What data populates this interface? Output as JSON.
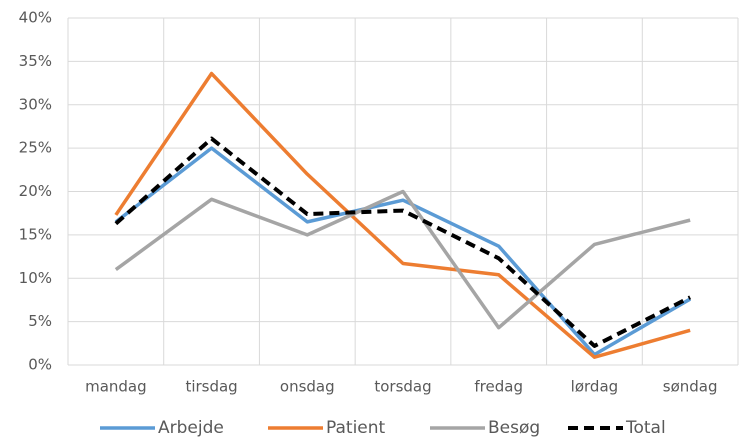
{
  "chart_data": {
    "type": "line",
    "categories": [
      "mandag",
      "tirsdag",
      "onsdag",
      "torsdag",
      "fredag",
      "lørdag",
      "søndag"
    ],
    "series": [
      {
        "name": "Arbejde",
        "color": "#5b9bd5",
        "values": [
          16.5,
          25,
          16.5,
          19,
          13.7,
          1.2,
          7.6
        ]
      },
      {
        "name": "Patient",
        "color": "#ed7d31",
        "values": [
          17.3,
          33.6,
          22,
          11.7,
          10.4,
          0.9,
          4
        ]
      },
      {
        "name": "Besøg",
        "color": "#a5a5a5",
        "values": [
          11,
          19.1,
          15,
          20,
          4.3,
          13.9,
          16.7
        ]
      },
      {
        "name": "Total",
        "color": "#000000",
        "dashed": true,
        "values": [
          16.3,
          26.1,
          17.4,
          17.8,
          12.3,
          2.2,
          7.8
        ]
      }
    ],
    "ylim": [
      0,
      40
    ],
    "yticks": [
      {
        "value": 0,
        "label": "0%"
      },
      {
        "value": 5,
        "label": "5%"
      },
      {
        "value": 10,
        "label": "10%"
      },
      {
        "value": 15,
        "label": "15%"
      },
      {
        "value": 20,
        "label": "20%"
      },
      {
        "value": 25,
        "label": "25%"
      },
      {
        "value": 30,
        "label": "30%"
      },
      {
        "value": 35,
        "label": "35%"
      },
      {
        "value": 40,
        "label": "40%"
      }
    ],
    "grid": true,
    "legend": "bottom"
  }
}
